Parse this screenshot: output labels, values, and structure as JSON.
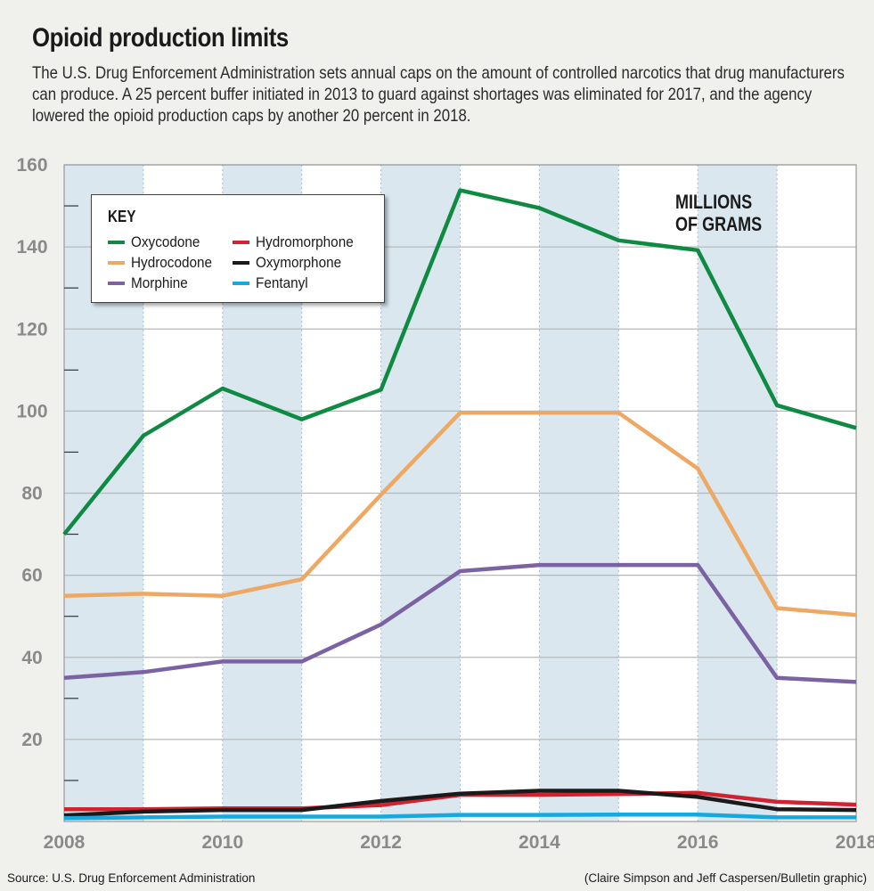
{
  "header": {
    "title": "Opioid production limits",
    "subtitle": "The U.S. Drug Enforcement Administration sets annual caps on the amount of controlled narcotics that drug manufacturers can produce. A 25 percent buffer initiated in 2013 to guard against shortages was eliminated for 2017, and the agency lowered the opioid production caps by another 20 percent in 2018."
  },
  "footer": {
    "source": "U.S. Drug Enforcement Administration",
    "source_prefix": "Source:",
    "credit": "(Claire Simpson and Jeff Caspersen/Bulletin graphic)"
  },
  "colors": {
    "background": "#f0f0ec",
    "plot_background": "#ffffff",
    "band_shade": "#dbe7ef",
    "grid": "#b8b8b8",
    "axis_text": "#8a8a8a"
  },
  "chart_data": {
    "type": "line",
    "title": "Opioid production limits",
    "units_label": [
      "MILLIONS",
      "OF GRAMS"
    ],
    "legend_title": "KEY",
    "legend_placement": "top-left",
    "x": [
      2008,
      2009,
      2010,
      2011,
      2012,
      2013,
      2014,
      2015,
      2016,
      2017,
      2018
    ],
    "x_tick_labels": [
      "2008",
      "2010",
      "2012",
      "2014",
      "2016",
      "2018"
    ],
    "xlim": [
      2008,
      2018
    ],
    "ylim": [
      0,
      160
    ],
    "y_ticks": [
      20,
      40,
      60,
      80,
      100,
      120,
      140,
      160
    ],
    "y_tick_labels": [
      "20",
      "40",
      "60",
      "80",
      "100",
      "120",
      "140",
      "160"
    ],
    "y_minor_ticks": [
      10,
      30,
      50,
      70,
      90,
      110,
      130,
      150
    ],
    "grid": true,
    "shaded_bands": [
      [
        2008,
        2009
      ],
      [
        2010,
        2011
      ],
      [
        2012,
        2013
      ],
      [
        2014,
        2015
      ],
      [
        2016,
        2017
      ]
    ],
    "series": [
      {
        "name": "Oxycodone",
        "color": "#0f8a43",
        "values": [
          70.0,
          94.0,
          105.5,
          98.0,
          105.2,
          153.8,
          149.5,
          141.6,
          139.2,
          101.4,
          95.9
        ]
      },
      {
        "name": "Hydrocodone",
        "color": "#eda863",
        "values": [
          55.0,
          55.5,
          55.0,
          59.0,
          79.6,
          99.6,
          99.6,
          99.6,
          86.0,
          52.0,
          50.3
        ]
      },
      {
        "name": "Morphine",
        "color": "#7b62a3",
        "values": [
          35.0,
          36.4,
          39.0,
          39.0,
          48.0,
          61.0,
          62.5,
          62.5,
          62.5,
          35.0,
          34.0
        ]
      },
      {
        "name": "Hydromorphone",
        "color": "#d0232f",
        "values": [
          3.0,
          3.0,
          3.2,
          3.2,
          4.0,
          6.5,
          6.5,
          6.7,
          7.0,
          4.8,
          4.1
        ]
      },
      {
        "name": "Oxymorphone",
        "color": "#1a1a1a",
        "values": [
          1.5,
          2.4,
          2.8,
          2.8,
          5.0,
          6.8,
          7.5,
          7.5,
          6.0,
          3.0,
          2.8
        ]
      },
      {
        "name": "Fentanyl",
        "color": "#14a9e1",
        "values": [
          0.8,
          1.0,
          1.2,
          1.2,
          1.2,
          1.6,
          1.6,
          1.7,
          1.7,
          1.0,
          1.0
        ]
      }
    ]
  }
}
